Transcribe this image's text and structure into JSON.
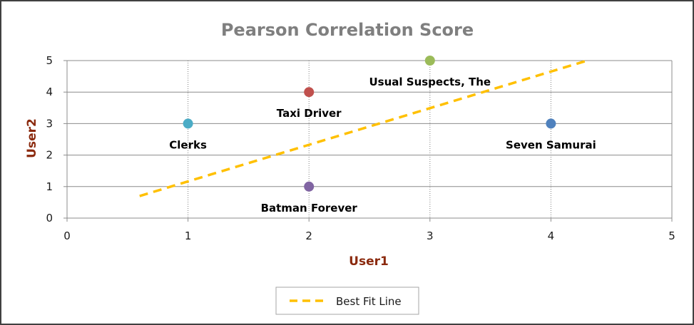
{
  "chart_data": {
    "type": "scatter",
    "title": "Pearson Correlation Score",
    "xlabel": "User1",
    "ylabel": "User2",
    "xlim": [
      0,
      5
    ],
    "ylim": [
      0,
      5
    ],
    "x_ticks": [
      "0",
      "1",
      "2",
      "3",
      "4",
      "5"
    ],
    "y_ticks": [
      "0",
      "1",
      "2",
      "3",
      "4",
      "5"
    ],
    "grid": "horizontal major lines; dotted vertical lines at points",
    "points": [
      {
        "label": "Clerks",
        "x": 1,
        "y": 3,
        "color": "#4bacc6"
      },
      {
        "label": "Taxi Driver",
        "x": 2,
        "y": 4,
        "color": "#c0504d"
      },
      {
        "label": "Batman Forever",
        "x": 2,
        "y": 1,
        "color": "#8064a2"
      },
      {
        "label": "Usual Suspects, The",
        "x": 3,
        "y": 5,
        "color": "#9bbb59"
      },
      {
        "label": "Seven Samurai",
        "x": 4,
        "y": 3,
        "color": "#4f81bd"
      }
    ],
    "fit_line": {
      "name": "Best Fit Line",
      "x": [
        0.6,
        4.3
      ],
      "y": [
        0.7,
        5.0
      ],
      "color": "#ffc000",
      "style": "dashed"
    },
    "legend": {
      "position": "bottom-center",
      "entries": [
        "Best Fit Line"
      ]
    }
  }
}
